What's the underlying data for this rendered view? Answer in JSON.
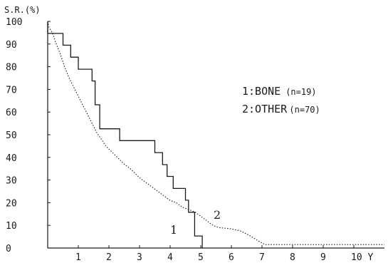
{
  "chart_data": {
    "type": "line",
    "ylabel": "S.R.(%)",
    "x_unit": "Y",
    "xlim": [
      0,
      11
    ],
    "ylim": [
      0,
      100
    ],
    "x_ticks": [
      1,
      2,
      3,
      4,
      5,
      6,
      7,
      8,
      9,
      10
    ],
    "x_tick_labels": [
      "1",
      "2",
      "3",
      "4",
      "5",
      "6",
      "7",
      "8",
      "9",
      "10 Y"
    ],
    "y_ticks": [
      0,
      10,
      20,
      30,
      40,
      50,
      60,
      70,
      80,
      90,
      100
    ],
    "y_tick_labels": [
      "0",
      "10",
      "20",
      "30",
      "40",
      "50",
      "60",
      "70",
      "80",
      "90",
      "100"
    ],
    "legend": {
      "position": "right",
      "entries": [
        {
          "id": "1",
          "label": "1:BONE",
          "n": "(n=19)"
        },
        {
          "id": "2",
          "label": "2:OTHER",
          "n": "(n=70)"
        }
      ]
    },
    "series": [
      {
        "name": "1",
        "style": "solid",
        "curve_label": "1",
        "points": [
          [
            0,
            100
          ],
          [
            0,
            94.7
          ],
          [
            0.5,
            94.7
          ],
          [
            0.5,
            89.5
          ],
          [
            0.75,
            89.5
          ],
          [
            0.75,
            84.2
          ],
          [
            1,
            84.2
          ],
          [
            1,
            78.9
          ],
          [
            1.45,
            78.9
          ],
          [
            1.45,
            73.7
          ],
          [
            1.55,
            73.7
          ],
          [
            1.55,
            63.2
          ],
          [
            1.7,
            63.2
          ],
          [
            1.7,
            52.6
          ],
          [
            2.35,
            52.6
          ],
          [
            2.35,
            47.4
          ],
          [
            3.5,
            47.4
          ],
          [
            3.5,
            42.1
          ],
          [
            3.75,
            42.1
          ],
          [
            3.75,
            36.8
          ],
          [
            3.9,
            36.8
          ],
          [
            3.9,
            31.6
          ],
          [
            4.1,
            31.6
          ],
          [
            4.1,
            26.3
          ],
          [
            4.5,
            26.3
          ],
          [
            4.5,
            21.1
          ],
          [
            4.6,
            21.1
          ],
          [
            4.6,
            15.8
          ],
          [
            4.8,
            15.8
          ],
          [
            4.8,
            5.3
          ],
          [
            5.05,
            5.3
          ],
          [
            5.05,
            0
          ]
        ]
      },
      {
        "name": "2",
        "style": "dotted",
        "curve_label": "2",
        "points": [
          [
            0,
            100
          ],
          [
            0.05,
            97
          ],
          [
            0.15,
            95
          ],
          [
            0.25,
            91
          ],
          [
            0.4,
            86
          ],
          [
            0.55,
            80
          ],
          [
            0.7,
            75
          ],
          [
            0.85,
            71
          ],
          [
            1.0,
            67
          ],
          [
            1.15,
            63
          ],
          [
            1.3,
            59
          ],
          [
            1.45,
            55
          ],
          [
            1.6,
            51
          ],
          [
            1.75,
            48
          ],
          [
            1.9,
            45
          ],
          [
            2.05,
            43
          ],
          [
            2.2,
            41
          ],
          [
            2.35,
            39
          ],
          [
            2.5,
            37
          ],
          [
            2.7,
            35
          ],
          [
            2.85,
            33
          ],
          [
            3.0,
            31
          ],
          [
            3.2,
            29
          ],
          [
            3.4,
            27
          ],
          [
            3.6,
            25
          ],
          [
            3.8,
            23
          ],
          [
            4.0,
            21
          ],
          [
            4.2,
            20
          ],
          [
            4.4,
            18
          ],
          [
            4.6,
            17
          ],
          [
            4.8,
            16
          ],
          [
            5.0,
            14
          ],
          [
            5.2,
            12
          ],
          [
            5.4,
            10
          ],
          [
            5.6,
            9
          ],
          [
            6.0,
            8.5
          ],
          [
            6.3,
            7.5
          ],
          [
            6.6,
            5.5
          ],
          [
            6.9,
            3
          ],
          [
            7.1,
            1.5
          ],
          [
            10.5,
            1.5
          ],
          [
            11,
            1.5
          ]
        ]
      }
    ]
  }
}
